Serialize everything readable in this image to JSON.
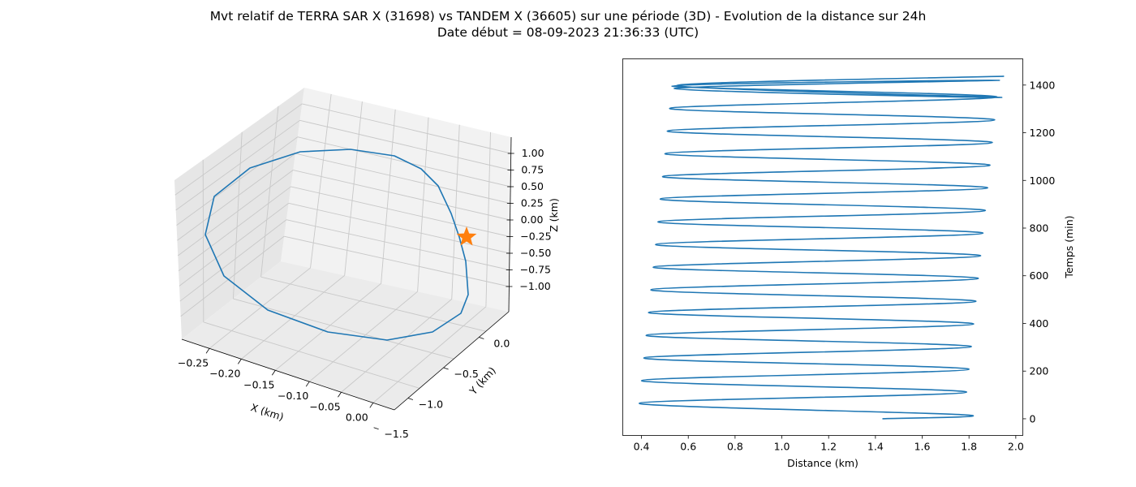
{
  "figure": {
    "title_line1": "Mvt relatif de TERRA SAR X (31698) vs TANDEM X (36605) sur une période (3D) - Evolution de la distance sur 24h",
    "title_line2": "Date début = 08-09-2023 21:36:33 (UTC)"
  },
  "chart_data": [
    {
      "type": "line3d",
      "xlabel": "X (km)",
      "ylabel": "Y (km)",
      "zlabel": "Z (km)",
      "x_ticks": [
        "−0.25",
        "−0.20",
        "−0.15",
        "−0.10",
        "−0.05",
        "0.00"
      ],
      "y_ticks": [
        "0.0",
        "−0.5",
        "−1.0",
        "−1.5"
      ],
      "z_ticks": [
        "1.00",
        "0.75",
        "0.50",
        "0.25",
        "0.00",
        "−0.25",
        "−0.50",
        "−0.75",
        "−1.00"
      ],
      "grid": true,
      "series": [
        {
          "color": "#1f77b4"
        }
      ],
      "marker": {
        "shape": "star",
        "color": "#ff7f0e"
      }
    },
    {
      "type": "line",
      "xlabel": "Distance (km)",
      "ylabel": "Temps (min)",
      "xlim": [
        0.32,
        2.03
      ],
      "ylim": [
        -70,
        1510
      ],
      "x_ticks": [
        0.4,
        0.6,
        0.8,
        1.0,
        1.2,
        1.4,
        1.6,
        1.8,
        2.0
      ],
      "y_ticks": [
        0,
        200,
        400,
        600,
        800,
        1000,
        1200,
        1400
      ],
      "y_axis_side": "right",
      "grid": false,
      "series": [
        {
          "color": "#1f77b4",
          "x": [
            1.43,
            1.78,
            0.39,
            1.79,
            0.4,
            1.8,
            0.41,
            1.81,
            0.42,
            1.82,
            0.43,
            1.83,
            0.44,
            1.84,
            0.45,
            1.85,
            0.46,
            1.86,
            0.47,
            1.87,
            0.48,
            1.88,
            0.49,
            1.89,
            0.5,
            1.9,
            0.51,
            1.91,
            0.52,
            1.92,
            0.53,
            1.93,
            0.54,
            1.94,
            0.55,
            1.95
          ],
          "y": [
            0,
            17,
            65,
            112,
            160,
            208,
            255,
            303,
            350,
            398,
            446,
            493,
            541,
            589,
            636,
            684,
            731,
            779,
            826,
            874,
            922,
            969,
            1016,
            1064,
            1112,
            1159,
            1207,
            1254,
            1302,
            1350,
            1396,
            1420,
            1385,
            1348,
            1398,
            1437
          ]
        }
      ]
    }
  ]
}
